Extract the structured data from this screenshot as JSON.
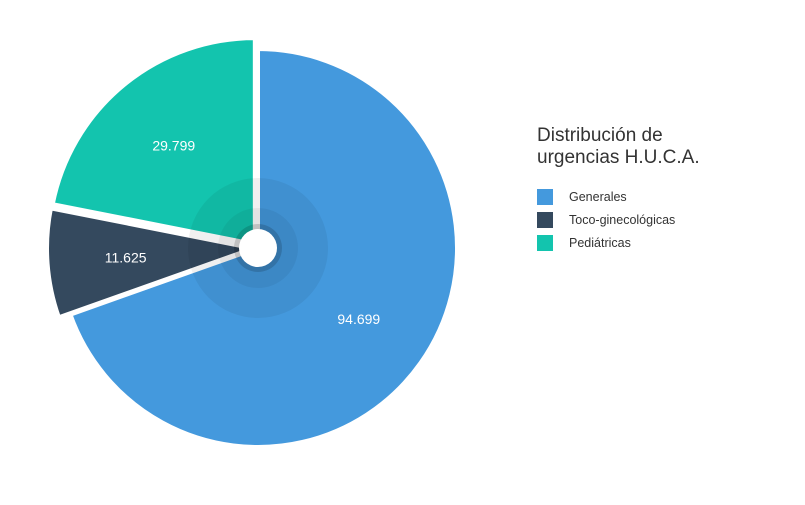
{
  "chart_data": {
    "type": "pie",
    "title": "Distribución de urgencias H.U.C.A.",
    "categories": [
      "Generales",
      "Toco-ginecológicas",
      "Pediátricas"
    ],
    "values": [
      94699,
      11625,
      29799
    ],
    "labels": [
      "94.699",
      "11.625",
      "29.799"
    ],
    "colors": [
      "#4499dd",
      "#34495e",
      "#13c4ae"
    ],
    "legend_position": "right"
  },
  "legend": {
    "title_line1": "Distribución de",
    "title_line2": "urgencias H.U.C.A.",
    "items": [
      {
        "label": "Generales",
        "color": "#4499dd"
      },
      {
        "label": "Toco-ginecológicas",
        "color": "#34495e"
      },
      {
        "label": "Pediátricas",
        "color": "#13c4ae"
      }
    ]
  }
}
